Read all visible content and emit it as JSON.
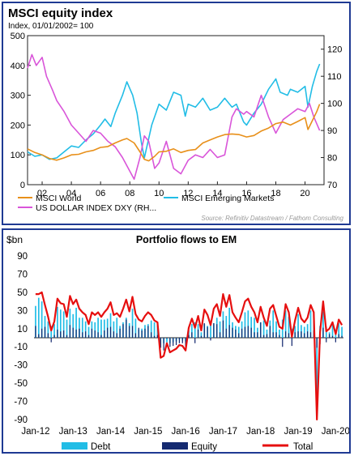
{
  "chart_data": [
    {
      "type": "line",
      "title": "MSCI equity index",
      "subtitle": "Index, 01/01/2002= 100",
      "source": "Source: Refinitiv Datastream / Fathom Consulting",
      "x_ticks": [
        "02",
        "04",
        "06",
        "08",
        "10",
        "12",
        "14",
        "16",
        "18",
        "20"
      ],
      "ylim_left": [
        0,
        500
      ],
      "ylim_right": [
        70,
        125
      ],
      "yticks_left": [
        "0",
        "100",
        "200",
        "300",
        "400",
        "500"
      ],
      "yticks_right": [
        "70",
        "80",
        "90",
        "100",
        "110",
        "120"
      ],
      "grid": false,
      "legend_position": "bottom",
      "colors": {
        "MSCI World": "#e8901a",
        "MSCI Emerging Markets": "#22bde6",
        "US DOLLAR INDEX DXY (RH...": "#d955d9"
      },
      "series": [
        {
          "name": "MSCI World",
          "axis": "left",
          "color": "#e8901a",
          "x": [
            2001.0,
            2001.5,
            2002.0,
            2002.5,
            2003.0,
            2003.5,
            2004.0,
            2004.5,
            2005.0,
            2005.5,
            2006.0,
            2006.5,
            2007.0,
            2007.5,
            2007.8,
            2008.3,
            2008.7,
            2009.0,
            2009.3,
            2009.7,
            2010.0,
            2010.5,
            2011.0,
            2011.5,
            2012.0,
            2012.5,
            2013.0,
            2013.5,
            2014.0,
            2014.5,
            2015.0,
            2015.5,
            2016.0,
            2016.5,
            2017.0,
            2017.5,
            2018.0,
            2018.5,
            2019.0,
            2019.5,
            2020.0,
            2020.2,
            2020.5,
            2020.8,
            2021.0
          ],
          "y": [
            120,
            108,
            100,
            88,
            82,
            90,
            100,
            102,
            110,
            115,
            125,
            128,
            140,
            150,
            155,
            140,
            110,
            85,
            80,
            95,
            110,
            112,
            120,
            108,
            115,
            118,
            140,
            150,
            160,
            168,
            170,
            168,
            160,
            165,
            180,
            190,
            205,
            210,
            200,
            212,
            225,
            185,
            215,
            245,
            270
          ]
        },
        {
          "name": "MSCI Emerging Markets",
          "axis": "left",
          "color": "#22bde6",
          "x": [
            2001.0,
            2001.5,
            2002.0,
            2002.5,
            2003.0,
            2003.5,
            2004.0,
            2004.5,
            2005.0,
            2005.5,
            2006.0,
            2006.3,
            2006.7,
            2007.0,
            2007.5,
            2007.8,
            2008.2,
            2008.5,
            2008.8,
            2009.0,
            2009.5,
            2010.0,
            2010.5,
            2011.0,
            2011.5,
            2011.8,
            2012.0,
            2012.5,
            2013.0,
            2013.5,
            2014.0,
            2014.5,
            2015.0,
            2015.3,
            2015.8,
            2016.0,
            2016.5,
            2017.0,
            2017.5,
            2018.0,
            2018.3,
            2018.8,
            2019.0,
            2019.5,
            2020.0,
            2020.2,
            2020.5,
            2020.8,
            2021.0
          ],
          "y": [
            110,
            95,
            100,
            85,
            90,
            110,
            130,
            125,
            150,
            170,
            200,
            220,
            195,
            240,
            300,
            345,
            300,
            240,
            140,
            90,
            200,
            270,
            250,
            310,
            300,
            230,
            270,
            260,
            290,
            250,
            260,
            290,
            260,
            270,
            210,
            200,
            240,
            270,
            320,
            355,
            310,
            300,
            320,
            310,
            330,
            260,
            330,
            380,
            405
          ]
        },
        {
          "name": "US DOLLAR INDEX DXY (RH...",
          "axis": "right",
          "color": "#d955d9",
          "x": [
            2001.0,
            2001.3,
            2001.6,
            2002.0,
            2002.3,
            2002.7,
            2003.0,
            2003.5,
            2004.0,
            2004.5,
            2005.0,
            2005.5,
            2006.0,
            2006.5,
            2007.0,
            2007.5,
            2008.0,
            2008.3,
            2008.7,
            2009.0,
            2009.3,
            2009.7,
            2010.0,
            2010.5,
            2011.0,
            2011.5,
            2012.0,
            2012.5,
            2013.0,
            2013.5,
            2014.0,
            2014.5,
            2015.0,
            2015.3,
            2015.8,
            2016.0,
            2016.5,
            2017.0,
            2017.5,
            2018.0,
            2018.5,
            2019.0,
            2019.5,
            2020.0,
            2020.3,
            2020.6,
            2021.0
          ],
          "y": [
            113,
            118,
            114,
            117,
            110,
            105,
            101,
            97,
            92,
            89,
            86,
            90,
            89,
            86,
            84,
            80,
            75,
            72,
            80,
            88,
            86,
            76,
            78,
            86,
            76,
            74,
            79,
            81,
            80,
            83,
            80,
            81,
            95,
            98,
            96,
            97,
            95,
            103,
            95,
            89,
            94,
            96,
            98,
            97,
            100,
            95,
            90
          ]
        }
      ]
    },
    {
      "type": "bar",
      "title": "Portfolio flows to EM",
      "ylabel": "$bn",
      "x_ticks": [
        "Jan-12",
        "Jan-13",
        "Jan-14",
        "Jan-15",
        "Jan-16",
        "Jan-17",
        "Jan-18",
        "Jan-19",
        "Jan-20"
      ],
      "ylim": [
        -90,
        90
      ],
      "yticks": [
        "90",
        "70",
        "50",
        "30",
        "10",
        "-10",
        "-30",
        "-50",
        "-70",
        "-90"
      ],
      "grid": false,
      "legend_position": "bottom",
      "colors": {
        "Debt": "#22bde6",
        "Equity": "#152a70",
        "Total": "#e60f0f"
      },
      "series": [
        {
          "name": "Debt",
          "color": "#22bde6",
          "values": [
            35,
            44,
            40,
            24,
            18,
            13,
            15,
            34,
            31,
            29,
            20,
            32,
            26,
            33,
            22,
            22,
            18,
            12,
            18,
            17,
            22,
            20,
            20,
            21,
            27,
            18,
            22,
            13,
            17,
            22,
            16,
            32,
            21,
            9,
            10,
            14,
            15,
            19,
            17,
            14,
            -11,
            -6,
            -5,
            -6,
            -5,
            -4,
            -2,
            -3,
            -4,
            8,
            15,
            17,
            15,
            6,
            15,
            13,
            17,
            16,
            22,
            18,
            29,
            24,
            33,
            17,
            13,
            12,
            18,
            28,
            30,
            23,
            22,
            11,
            17,
            19,
            9,
            19,
            30,
            18,
            9,
            20,
            30,
            23,
            10,
            13,
            26,
            14,
            12,
            15,
            30,
            20,
            -79,
            13,
            29,
            12,
            6,
            15,
            9,
            16,
            12
          ]
        },
        {
          "name": "Equity",
          "color": "#152a70",
          "values": [
            13,
            4,
            10,
            12,
            5,
            -5,
            3,
            9,
            7,
            8,
            3,
            14,
            11,
            9,
            10,
            6,
            7,
            3,
            10,
            8,
            6,
            3,
            8,
            11,
            12,
            7,
            5,
            10,
            15,
            20,
            13,
            13,
            5,
            11,
            8,
            10,
            13,
            6,
            2,
            3,
            -11,
            -14,
            -1,
            -10,
            -9,
            -8,
            -6,
            -6,
            -10,
            3,
            6,
            -6,
            9,
            2,
            16,
            12,
            -3,
            16,
            15,
            6,
            19,
            10,
            14,
            11,
            9,
            5,
            10,
            12,
            13,
            11,
            6,
            6,
            17,
            3,
            4,
            13,
            6,
            6,
            3,
            -10,
            7,
            5,
            -9,
            6,
            7,
            7,
            5,
            7,
            6,
            8,
            -11,
            -7,
            11,
            -5,
            4,
            2,
            -5,
            4,
            2
          ]
        },
        {
          "name": "Total",
          "color": "#e60f0f",
          "values": [
            48,
            48,
            50,
            36,
            23,
            8,
            18,
            43,
            38,
            37,
            23,
            46,
            37,
            42,
            32,
            28,
            25,
            15,
            28,
            25,
            28,
            23,
            28,
            32,
            39,
            25,
            27,
            23,
            32,
            42,
            29,
            45,
            26,
            20,
            18,
            24,
            28,
            25,
            19,
            17,
            -22,
            -20,
            -6,
            -16,
            -14,
            -12,
            -8,
            -9,
            -14,
            11,
            21,
            11,
            24,
            8,
            31,
            25,
            14,
            32,
            37,
            24,
            48,
            34,
            47,
            28,
            22,
            17,
            28,
            40,
            43,
            34,
            28,
            17,
            34,
            22,
            13,
            32,
            36,
            24,
            12,
            10,
            37,
            28,
            1,
            19,
            33,
            21,
            17,
            22,
            36,
            28,
            -90,
            6,
            40,
            7,
            10,
            17,
            4,
            20,
            14
          ]
        }
      ]
    }
  ]
}
